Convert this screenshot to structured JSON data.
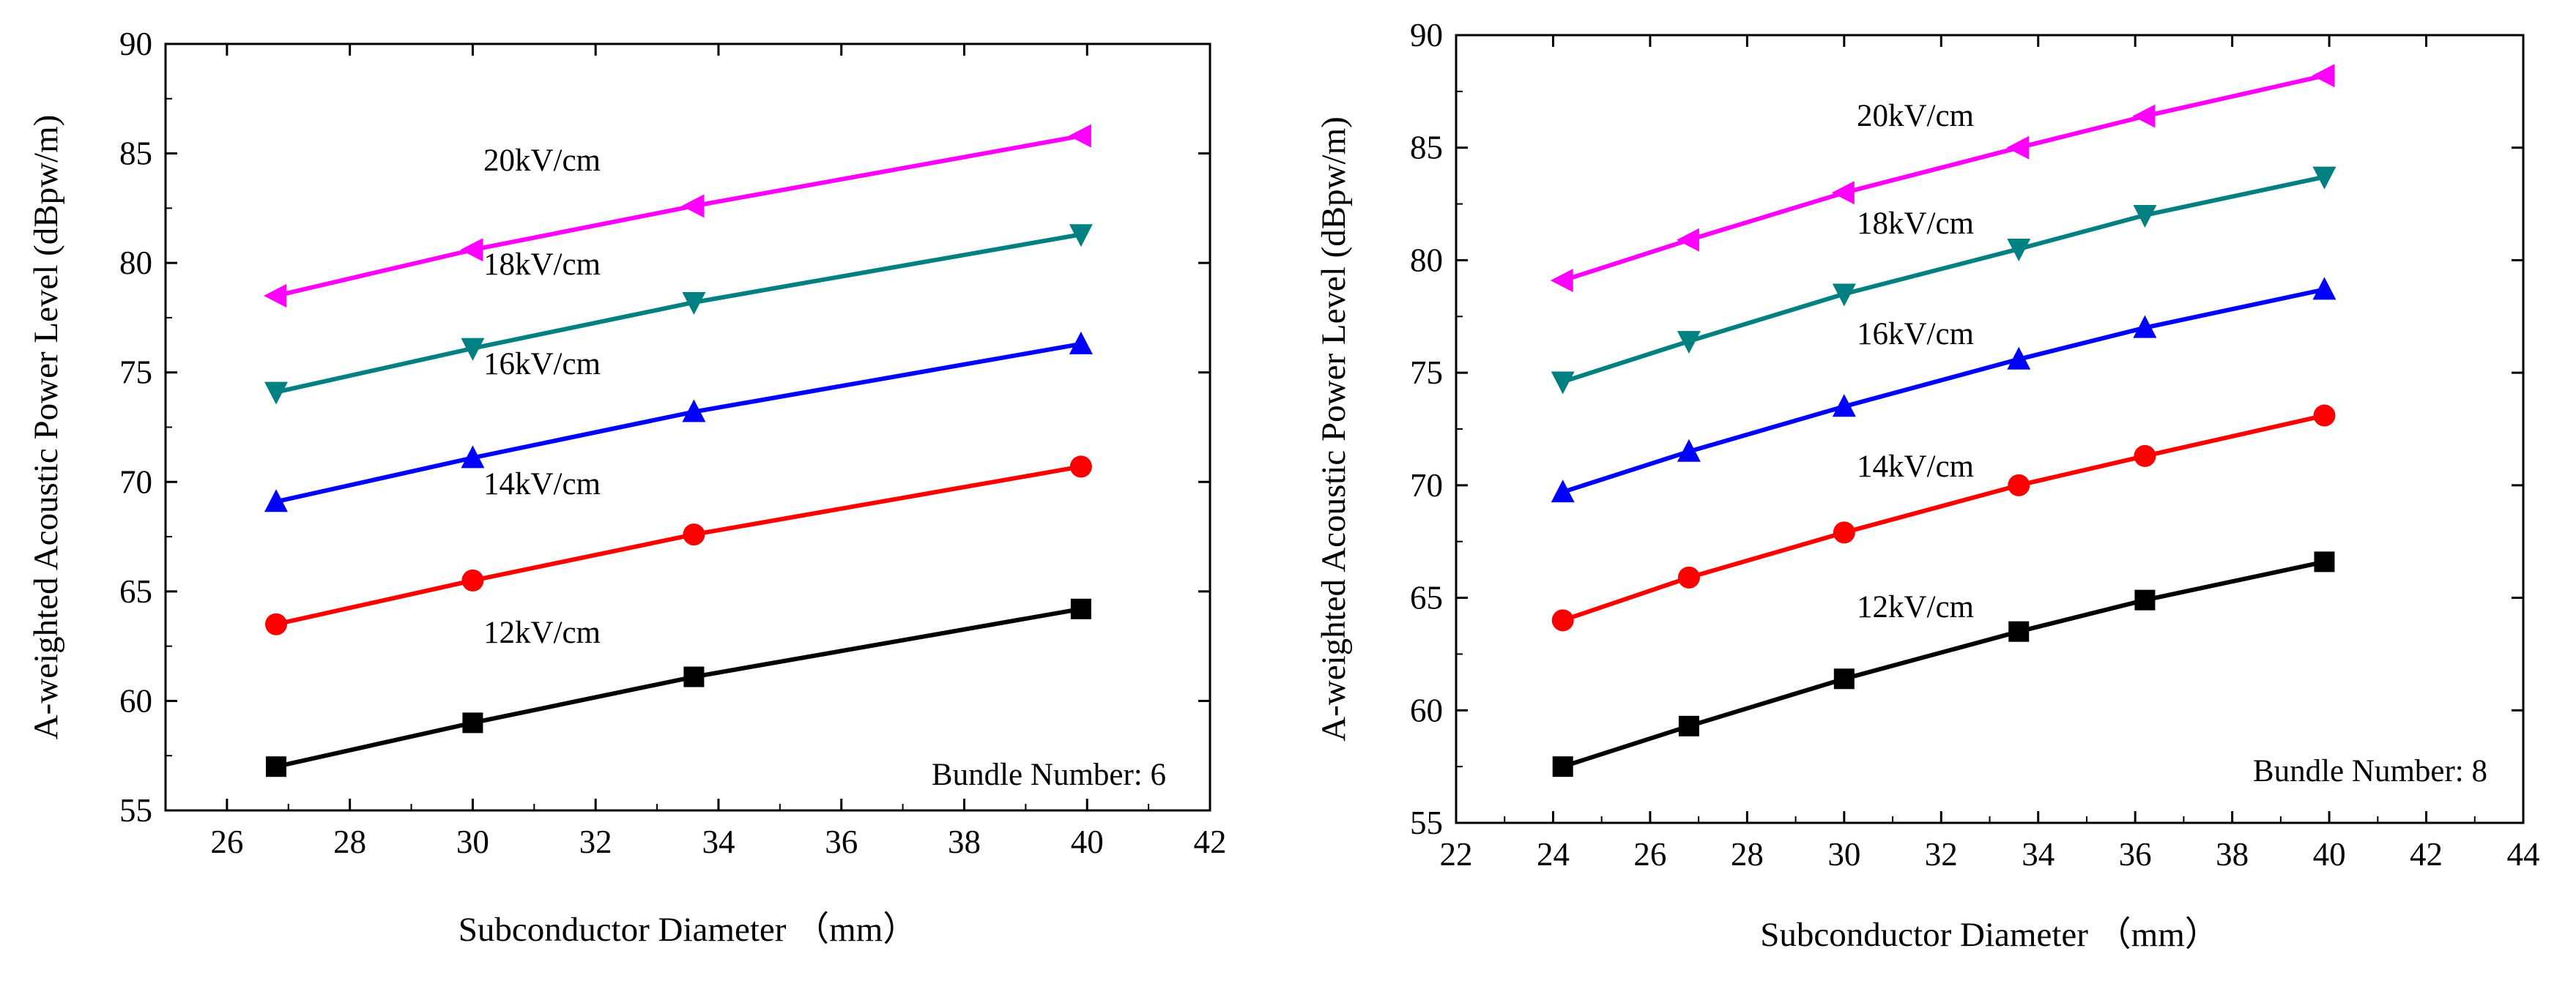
{
  "chart_data": [
    {
      "type": "line",
      "xlabel": "Subconductor Diameter （mm）",
      "ylabel": "A-weighted Acoustic Power Level (dBpw/m)",
      "xlim": [
        25,
        42
      ],
      "ylim": [
        55,
        90
      ],
      "xticks": [
        26,
        28,
        30,
        32,
        34,
        36,
        38,
        40,
        42
      ],
      "yticks": [
        55,
        60,
        65,
        70,
        75,
        80,
        85,
        90
      ],
      "annotation": "Bundle Number: 6",
      "x": [
        26.8,
        30.0,
        33.6,
        39.9
      ],
      "series": [
        {
          "name": "12kV/cm",
          "color": "#000000",
          "marker": "square",
          "values": [
            57.0,
            59.0,
            61.1,
            64.2
          ]
        },
        {
          "name": "14kV/cm",
          "color": "#ff0000",
          "marker": "circle",
          "values": [
            63.5,
            65.5,
            67.6,
            70.7
          ]
        },
        {
          "name": "16kV/cm",
          "color": "#0000ff",
          "marker": "triangle-up",
          "values": [
            69.1,
            71.1,
            73.2,
            76.3
          ]
        },
        {
          "name": "18kV/cm",
          "color": "#008080",
          "marker": "triangle-down",
          "values": [
            74.1,
            76.1,
            78.2,
            81.3
          ]
        },
        {
          "name": "20kV/cm",
          "color": "#ff00ff",
          "marker": "triangle-left",
          "values": [
            78.5,
            80.6,
            82.6,
            85.8
          ]
        }
      ]
    },
    {
      "type": "line",
      "xlabel": "Subconductor Diameter （mm）",
      "ylabel": "A-weighted Acoustic Power Level (dBpw/m)",
      "xlim": [
        22,
        44
      ],
      "ylim": [
        55,
        90
      ],
      "xticks": [
        22,
        24,
        26,
        28,
        30,
        32,
        34,
        36,
        38,
        40,
        42,
        44
      ],
      "yticks": [
        55,
        60,
        65,
        70,
        75,
        80,
        85,
        90
      ],
      "annotation": "Bundle Number: 8",
      "x": [
        24.2,
        26.8,
        30.0,
        33.6,
        36.2,
        39.9
      ],
      "series": [
        {
          "name": "12kV/cm",
          "color": "#000000",
          "marker": "square",
          "values": [
            57.5,
            59.3,
            61.4,
            63.5,
            64.9,
            66.6
          ]
        },
        {
          "name": "14kV/cm",
          "color": "#ff0000",
          "marker": "circle",
          "values": [
            64.0,
            65.9,
            67.9,
            70.0,
            71.3,
            73.1
          ]
        },
        {
          "name": "16kV/cm",
          "color": "#0000ff",
          "marker": "triangle-up",
          "values": [
            69.7,
            71.5,
            73.5,
            75.6,
            77.0,
            78.7
          ]
        },
        {
          "name": "18kV/cm",
          "color": "#008080",
          "marker": "triangle-down",
          "values": [
            74.6,
            76.4,
            78.5,
            80.5,
            82.0,
            83.7
          ]
        },
        {
          "name": "20kV/cm",
          "color": "#ff00ff",
          "marker": "triangle-left",
          "values": [
            79.1,
            80.9,
            83.0,
            85.0,
            86.4,
            88.2
          ]
        }
      ]
    }
  ]
}
